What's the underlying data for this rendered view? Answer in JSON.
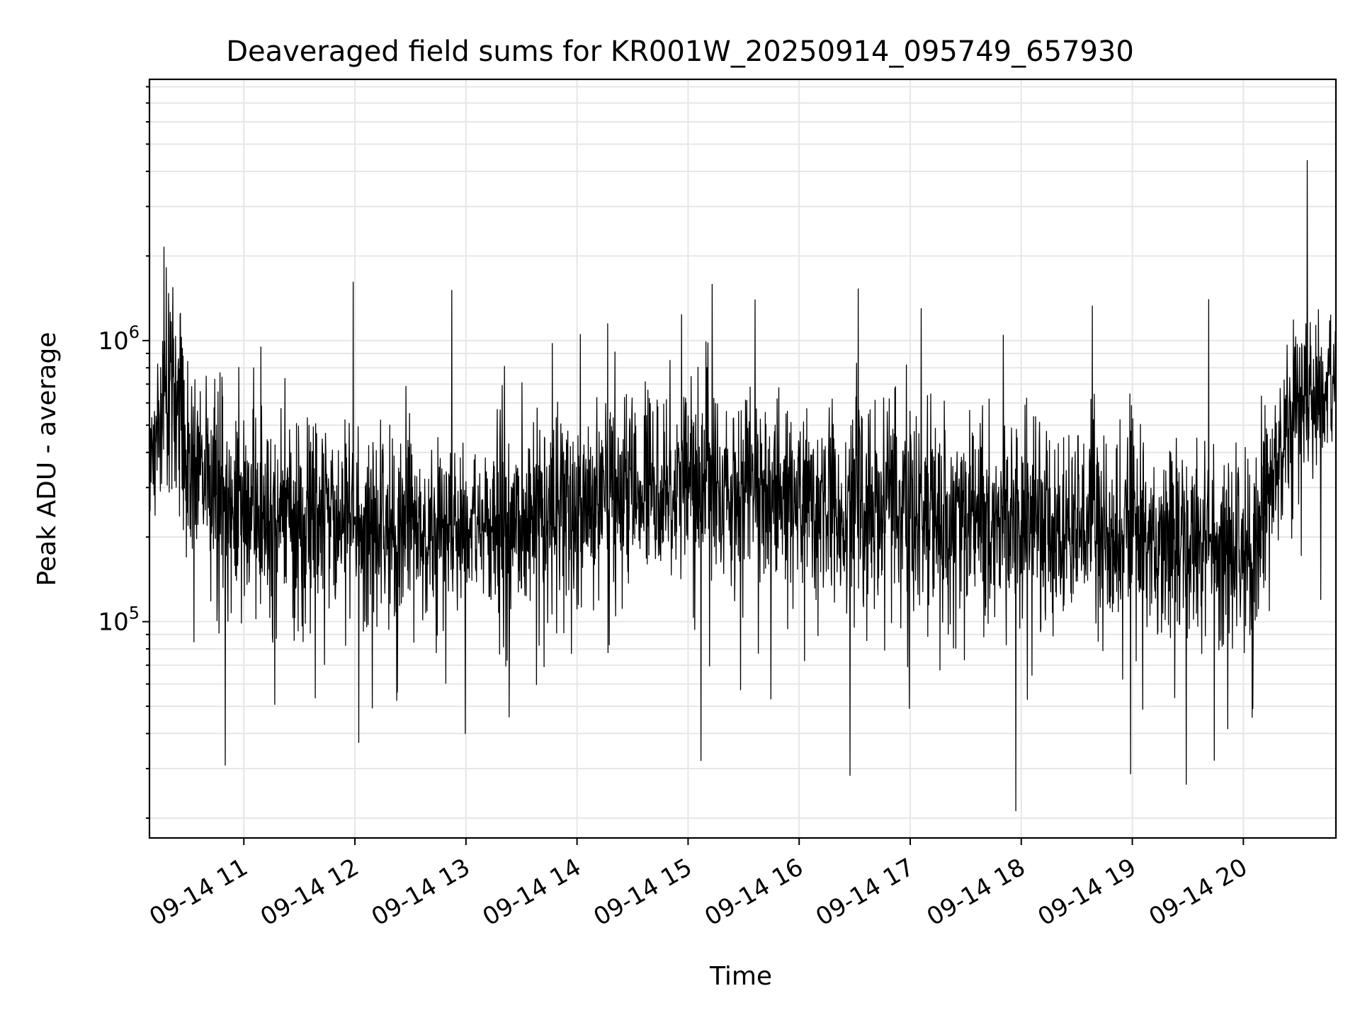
{
  "chart_data": {
    "type": "line",
    "title": "Deaveraged field sums for KR001W_20250914_095749_657930",
    "xlabel": "Time",
    "ylabel": "Peak ADU - average",
    "x_axis": {
      "type": "datetime",
      "range": [
        "2025-09-14T10:09",
        "2025-09-14T20:50"
      ],
      "ticks": [
        {
          "value": "2025-09-14T11:00",
          "label": "09-14 11"
        },
        {
          "value": "2025-09-14T12:00",
          "label": "09-14 12"
        },
        {
          "value": "2025-09-14T13:00",
          "label": "09-14 13"
        },
        {
          "value": "2025-09-14T14:00",
          "label": "09-14 14"
        },
        {
          "value": "2025-09-14T15:00",
          "label": "09-14 15"
        },
        {
          "value": "2025-09-14T16:00",
          "label": "09-14 16"
        },
        {
          "value": "2025-09-14T17:00",
          "label": "09-14 17"
        },
        {
          "value": "2025-09-14T18:00",
          "label": "09-14 18"
        },
        {
          "value": "2025-09-14T19:00",
          "label": "09-14 19"
        },
        {
          "value": "2025-09-14T20:00",
          "label": "09-14 20"
        }
      ]
    },
    "y_axis": {
      "scale": "log",
      "range": [
        17000,
        8500000
      ],
      "ticks": [
        {
          "value": 100000,
          "base": "10",
          "exp": "5"
        },
        {
          "value": 1000000,
          "base": "10",
          "exp": "6"
        }
      ]
    },
    "grid": true,
    "legend": "none",
    "series": [
      {
        "color": "#000000",
        "x": [
          "2025-09-14T10:09",
          "2025-09-14T10:15",
          "2025-09-14T10:20",
          "2025-09-14T10:30",
          "2025-09-14T10:45",
          "2025-09-14T11:00",
          "2025-09-14T11:15",
          "2025-09-14T11:30",
          "2025-09-14T11:45",
          "2025-09-14T12:00",
          "2025-09-14T12:15",
          "2025-09-14T12:30",
          "2025-09-14T12:45",
          "2025-09-14T13:00",
          "2025-09-14T13:15",
          "2025-09-14T13:30",
          "2025-09-14T13:45",
          "2025-09-14T14:00",
          "2025-09-14T14:15",
          "2025-09-14T14:30",
          "2025-09-14T14:45",
          "2025-09-14T15:00",
          "2025-09-14T15:15",
          "2025-09-14T15:30",
          "2025-09-14T15:45",
          "2025-09-14T16:00",
          "2025-09-14T16:15",
          "2025-09-14T16:30",
          "2025-09-14T16:45",
          "2025-09-14T17:00",
          "2025-09-14T17:15",
          "2025-09-14T17:30",
          "2025-09-14T17:45",
          "2025-09-14T18:00",
          "2025-09-14T18:15",
          "2025-09-14T18:30",
          "2025-09-14T18:45",
          "2025-09-14T19:00",
          "2025-09-14T19:15",
          "2025-09-14T19:30",
          "2025-09-14T19:45",
          "2025-09-14T20:00",
          "2025-09-14T20:10",
          "2025-09-14T20:20",
          "2025-09-14T20:30",
          "2025-09-14T20:40",
          "2025-09-14T20:50"
        ],
        "y": [
          400000,
          550000,
          800000,
          380000,
          300000,
          240000,
          230000,
          240000,
          230000,
          220000,
          220000,
          215000,
          210000,
          220000,
          215000,
          220000,
          240000,
          260000,
          280000,
          300000,
          310000,
          310000,
          300000,
          290000,
          280000,
          275000,
          270000,
          260000,
          250000,
          240000,
          240000,
          235000,
          240000,
          230000,
          220000,
          215000,
          210000,
          205000,
          200000,
          195000,
          190000,
          180000,
          200000,
          450000,
          600000,
          650000,
          700000
        ]
      }
    ]
  }
}
